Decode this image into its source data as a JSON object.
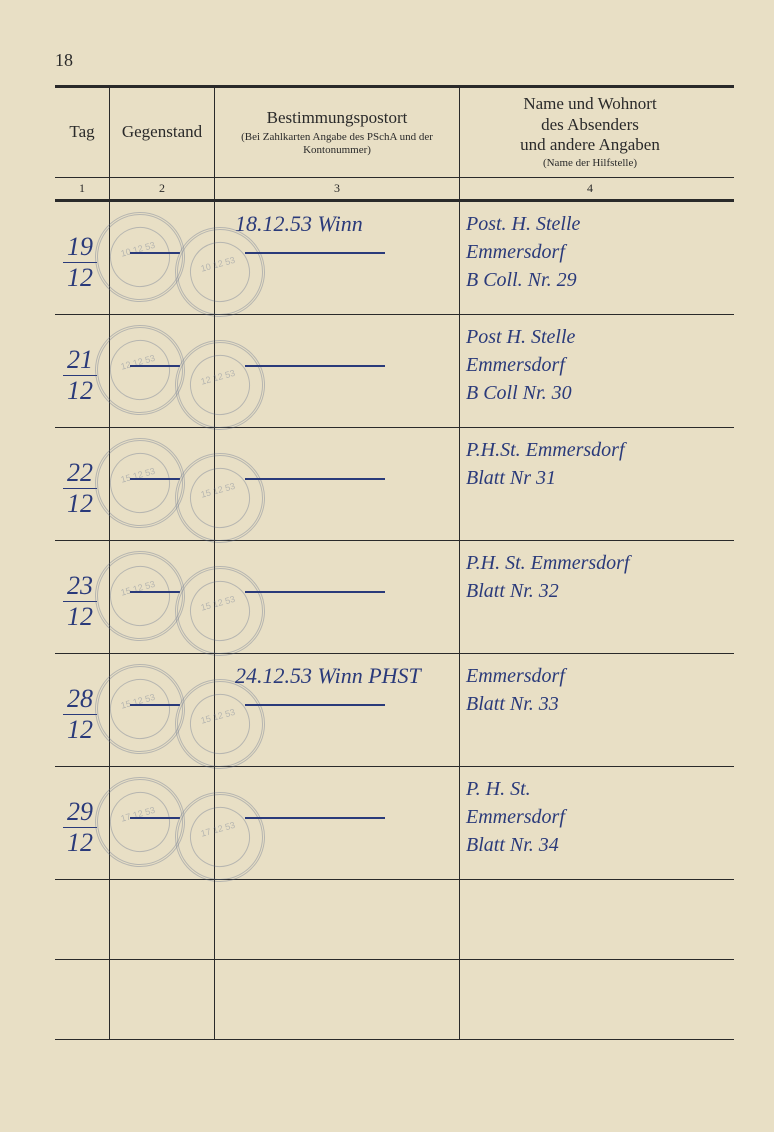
{
  "page_number": "18",
  "headers": {
    "col1": {
      "title": "Tag",
      "index": "1"
    },
    "col2": {
      "title": "Gegenstand",
      "index": "2"
    },
    "col3": {
      "title": "Bestimmungspostort",
      "subtitle": "(Bei Zahlkarten Angabe des PSchA und der Kontonummer)",
      "index": "3"
    },
    "col4": {
      "title_line1": "Name und Wohnort",
      "title_line2": "des Absenders",
      "title_line3": "und andere Angaben",
      "subtitle": "(Name der Hilfstelle)",
      "index": "4"
    }
  },
  "rows": [
    {
      "tag_num": "19",
      "tag_den": "12",
      "center_note": "18.12.53 Winn",
      "addr_line1": "Post. H. Stelle",
      "addr_line2": "Emmersdorf",
      "addr_line3": "B Coll. Nr. 29",
      "stamp_date": "10 12 53"
    },
    {
      "tag_num": "21",
      "tag_den": "12",
      "center_note": "",
      "addr_line1": "Post H. Stelle",
      "addr_line2": "Emmersdorf",
      "addr_line3": "B Coll Nr. 30",
      "stamp_date": "12 12 53"
    },
    {
      "tag_num": "22",
      "tag_den": "12",
      "center_note": "",
      "addr_line1": "P.H.St. Emmersdorf",
      "addr_line2": "",
      "addr_line3": "Blatt Nr 31",
      "stamp_date": "15 12 53"
    },
    {
      "tag_num": "23",
      "tag_den": "12",
      "center_note": "",
      "addr_line1": "P.H. St. Emmersdorf",
      "addr_line2": "",
      "addr_line3": "Blatt Nr. 32",
      "stamp_date": "15 12 53"
    },
    {
      "tag_num": "28",
      "tag_den": "12",
      "center_note": "24.12.53 Winn PHST",
      "addr_line1": "",
      "addr_line2": "Emmersdorf",
      "addr_line3": "Blatt Nr. 33",
      "stamp_date": "15 12 53"
    },
    {
      "tag_num": "29",
      "tag_den": "12",
      "center_note": "",
      "addr_line1": "P. H. St.",
      "addr_line2": "Emmersdorf",
      "addr_line3": "Blatt Nr. 34",
      "stamp_date": "17 12 53"
    }
  ],
  "colors": {
    "paper": "#e8dfc5",
    "ink_print": "#2a2a2a",
    "ink_handwriting": "#2a3a7a",
    "stamp": "#5a6a8a"
  }
}
